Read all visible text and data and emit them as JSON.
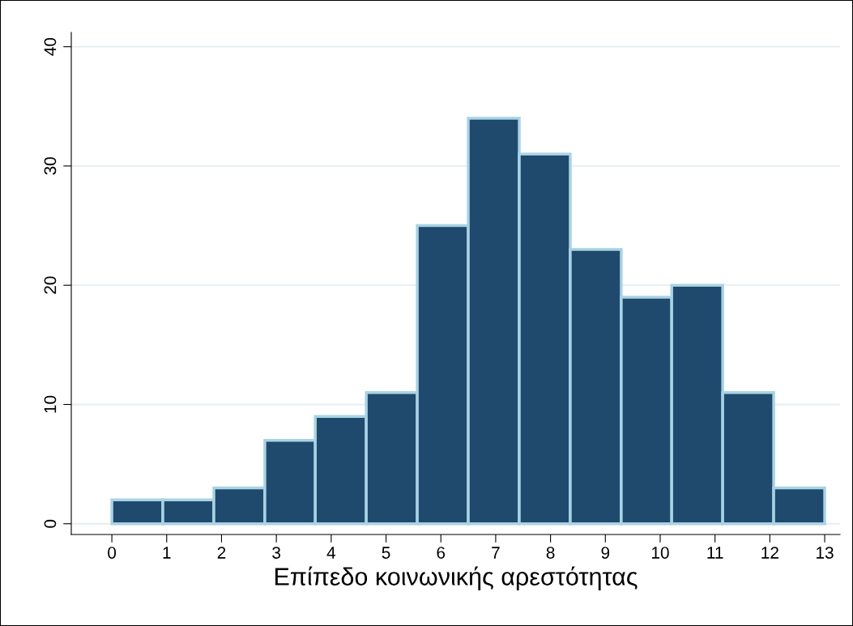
{
  "chart_data": {
    "type": "histogram",
    "xlabel": "Επίπεδο κοινωνικής αρεστότητας",
    "bins": [
      0,
      0.93,
      1.86,
      2.79,
      3.71,
      4.64,
      5.57,
      6.5,
      7.43,
      8.36,
      9.29,
      10.21,
      11.14,
      12.07,
      13
    ],
    "values": [
      2,
      2,
      3,
      7,
      9,
      11,
      25,
      34,
      31,
      23,
      19,
      20,
      11,
      3
    ],
    "color": "#1f4a6e",
    "xlim": [
      -0.74,
      13.28
    ],
    "ylim": [
      -0.9,
      41.2
    ],
    "xticks": [
      0,
      1,
      2,
      3,
      4,
      5,
      6,
      7,
      8,
      9,
      10,
      11,
      12,
      13
    ],
    "yticks": [
      0,
      10,
      20,
      30,
      40
    ],
    "grid": "y"
  }
}
